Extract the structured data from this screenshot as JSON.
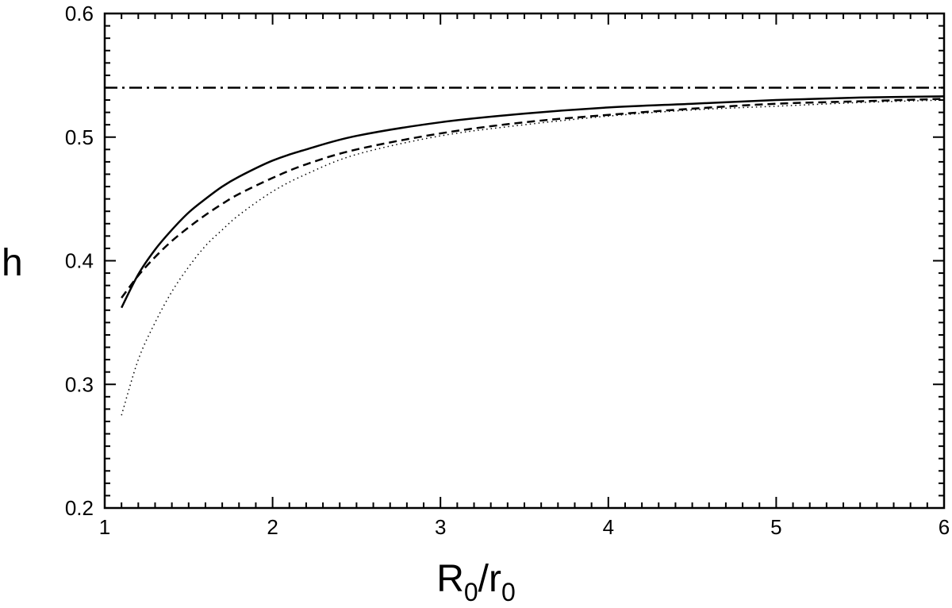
{
  "chart_data": {
    "type": "line",
    "title": "",
    "xlabel": {
      "main": "R",
      "sub": "0",
      "mid": "/r",
      "sub2": "0"
    },
    "ylabel": "h",
    "xlim": [
      1,
      6
    ],
    "ylim": [
      0.2,
      0.6
    ],
    "xticks": [
      1,
      2,
      3,
      4,
      5,
      6
    ],
    "yticks": [
      0.2,
      0.3,
      0.4,
      0.5,
      0.6
    ],
    "xtick_labels": [
      "1",
      "2",
      "3",
      "4",
      "5",
      "6"
    ],
    "ytick_labels": [
      "0.2",
      "0.3",
      "0.4",
      "0.5",
      "0.6"
    ],
    "grid": false,
    "legend": "none",
    "series": [
      {
        "style": "solid",
        "x": [
          1.1,
          1.2,
          1.3,
          1.4,
          1.5,
          1.6,
          1.7,
          1.8,
          2.0,
          2.2,
          2.5,
          3.0,
          3.5,
          4.0,
          4.5,
          5.0,
          5.5,
          6.0
        ],
        "y": [
          0.362,
          0.389,
          0.409,
          0.425,
          0.439,
          0.45,
          0.46,
          0.468,
          0.481,
          0.49,
          0.501,
          0.512,
          0.519,
          0.524,
          0.527,
          0.53,
          0.532,
          0.533
        ]
      },
      {
        "style": "dashed",
        "x": [
          1.1,
          1.2,
          1.3,
          1.4,
          1.5,
          1.6,
          1.7,
          1.8,
          2.0,
          2.2,
          2.5,
          3.0,
          3.5,
          4.0,
          4.5,
          5.0,
          5.5,
          6.0
        ],
        "y": [
          0.37,
          0.388,
          0.403,
          0.416,
          0.427,
          0.437,
          0.446,
          0.454,
          0.467,
          0.478,
          0.49,
          0.503,
          0.512,
          0.518,
          0.523,
          0.527,
          0.529,
          0.531
        ]
      },
      {
        "style": "dotted",
        "x": [
          1.1,
          1.2,
          1.3,
          1.4,
          1.5,
          1.6,
          1.7,
          1.8,
          2.0,
          2.2,
          2.5,
          3.0,
          3.5,
          4.0,
          4.5,
          5.0,
          5.5,
          6.0
        ],
        "y": [
          0.275,
          0.32,
          0.35,
          0.375,
          0.395,
          0.412,
          0.425,
          0.437,
          0.456,
          0.47,
          0.486,
          0.501,
          0.51,
          0.517,
          0.522,
          0.525,
          0.528,
          0.53
        ]
      },
      {
        "style": "dashdot",
        "x": [
          1.0,
          6.0
        ],
        "y": [
          0.54,
          0.54
        ]
      }
    ]
  }
}
